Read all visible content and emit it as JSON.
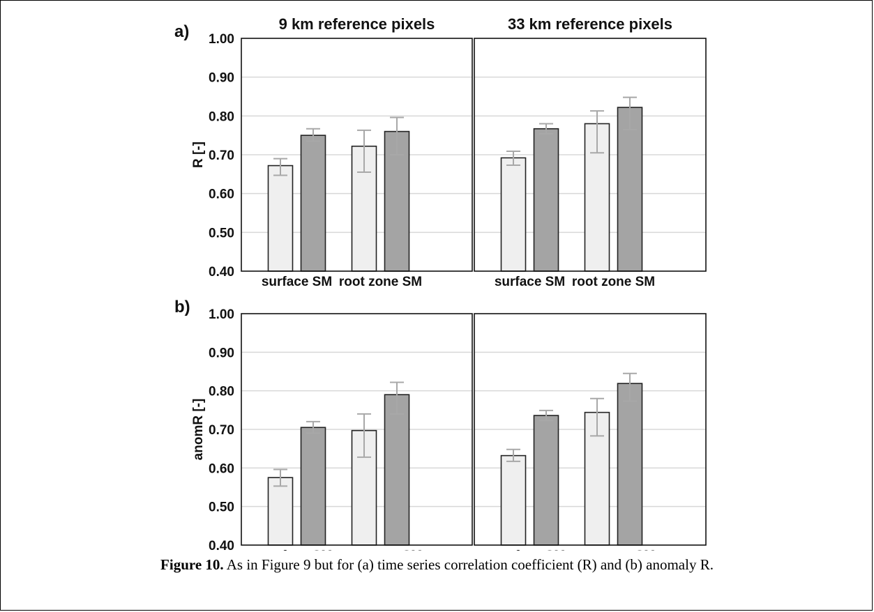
{
  "caption": {
    "label": "Figure 10.",
    "text": " As in Figure 9 but for (a) time series correlation coefficient (R) and (b) anomaly R."
  },
  "colors": {
    "light_bar": "#efefef",
    "dark_bar": "#a4a4a4",
    "error_bar": "#a8a8a8",
    "grid": "#d8d8d8"
  },
  "chart_data": [
    {
      "type": "bar",
      "panel_label": "a)",
      "title": "9 km reference pixels",
      "ylabel": "R [-]",
      "ylim": [
        0.4,
        1.0
      ],
      "yticks": [
        "0.40",
        "0.50",
        "0.60",
        "0.70",
        "0.80",
        "0.90",
        "1.00"
      ],
      "grid": true,
      "categories": [
        "surface SM",
        "root zone SM"
      ],
      "series": [
        {
          "values": [
            0.672,
            0.722
          ],
          "err_low": [
            0.647,
            0.655
          ],
          "err_high": [
            0.69,
            0.763
          ]
        },
        {
          "values": [
            0.75,
            0.76
          ],
          "err_low": [
            0.735,
            0.7
          ],
          "err_high": [
            0.767,
            0.796
          ]
        }
      ]
    },
    {
      "type": "bar",
      "title": "33 km reference pixels",
      "ylim": [
        0.4,
        1.0
      ],
      "grid": true,
      "categories": [
        "surface SM",
        "root zone SM"
      ],
      "series": [
        {
          "values": [
            0.692,
            0.78
          ],
          "err_low": [
            0.673,
            0.705
          ],
          "err_high": [
            0.709,
            0.813
          ]
        },
        {
          "values": [
            0.767,
            0.822
          ],
          "err_low": [
            0.754,
            0.765
          ],
          "err_high": [
            0.78,
            0.848
          ]
        }
      ]
    },
    {
      "type": "bar",
      "panel_label": "b)",
      "ylabel": "anomR [-]",
      "ylim": [
        0.4,
        1.0
      ],
      "yticks": [
        "0.40",
        "0.50",
        "0.60",
        "0.70",
        "0.80",
        "0.90",
        "1.00"
      ],
      "grid": true,
      "categories": [
        "surface SM",
        "root zone SM"
      ],
      "series": [
        {
          "values": [
            0.575,
            0.697
          ],
          "err_low": [
            0.553,
            0.628
          ],
          "err_high": [
            0.596,
            0.74
          ]
        },
        {
          "values": [
            0.705,
            0.79
          ],
          "err_low": [
            0.69,
            0.74
          ],
          "err_high": [
            0.72,
            0.822
          ]
        }
      ]
    },
    {
      "type": "bar",
      "ylim": [
        0.4,
        1.0
      ],
      "grid": true,
      "categories": [
        "surface SM",
        "root zone SM"
      ],
      "series": [
        {
          "values": [
            0.632,
            0.744
          ],
          "err_low": [
            0.617,
            0.683
          ],
          "err_high": [
            0.648,
            0.78
          ]
        },
        {
          "values": [
            0.736,
            0.819
          ],
          "err_low": [
            0.723,
            0.773
          ],
          "err_high": [
            0.749,
            0.845
          ]
        }
      ]
    }
  ]
}
